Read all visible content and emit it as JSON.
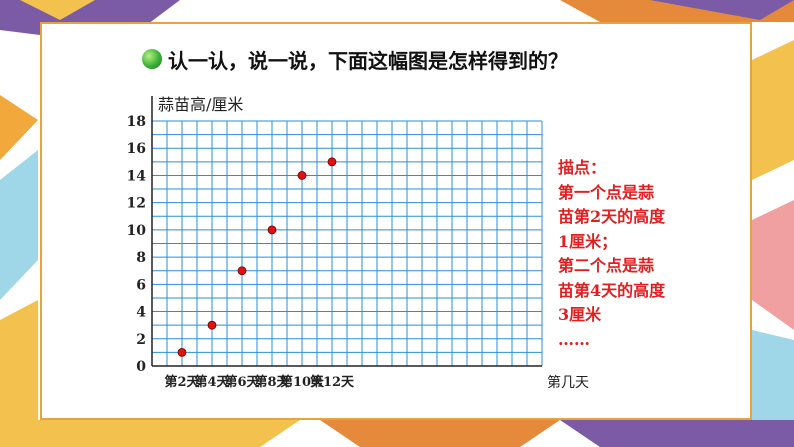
{
  "question": "认一认，说一说，下面这幅图是怎样得到的？",
  "colors": {
    "grid": "#2a8fd8",
    "point": "#e21010",
    "note_text": "#e02020",
    "frame": "#e8a33a"
  },
  "chart_data": {
    "type": "scatter",
    "title": "",
    "ylabel": "蒜苗高/厘米",
    "xlabel": "第几天",
    "categories": [
      "第2天",
      "第4天",
      "第6天",
      "第8天",
      "第10天",
      "第12天"
    ],
    "x": [
      2,
      4,
      6,
      8,
      10,
      12
    ],
    "values": [
      1,
      3,
      7,
      10,
      14,
      15
    ],
    "ylim": [
      0,
      18
    ],
    "yticks": [
      0,
      2,
      4,
      6,
      8,
      10,
      12,
      14,
      16,
      18
    ],
    "grid": true,
    "legend": "none"
  },
  "note": {
    "lines": [
      "描点：",
      "第一个点是蒜",
      "苗第2天的高度",
      "1厘米；",
      "第二个点是蒜",
      "苗第4天的高度",
      "3厘米",
      "……"
    ]
  }
}
